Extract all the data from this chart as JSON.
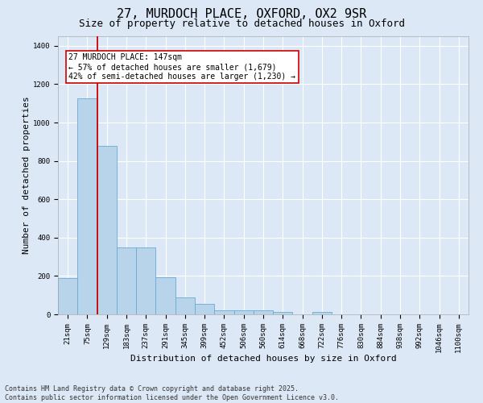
{
  "title_line1": "27, MURDOCH PLACE, OXFORD, OX2 9SR",
  "title_line2": "Size of property relative to detached houses in Oxford",
  "xlabel": "Distribution of detached houses by size in Oxford",
  "ylabel": "Number of detached properties",
  "categories": [
    "21sqm",
    "75sqm",
    "129sqm",
    "183sqm",
    "237sqm",
    "291sqm",
    "345sqm",
    "399sqm",
    "452sqm",
    "506sqm",
    "560sqm",
    "614sqm",
    "668sqm",
    "722sqm",
    "776sqm",
    "830sqm",
    "884sqm",
    "938sqm",
    "992sqm",
    "1046sqm",
    "1100sqm"
  ],
  "values": [
    190,
    1125,
    880,
    350,
    350,
    195,
    90,
    55,
    20,
    20,
    20,
    12,
    0,
    12,
    0,
    0,
    0,
    0,
    0,
    0,
    0
  ],
  "bar_color": "#b8d4ea",
  "bar_edge_color": "#6aaad4",
  "vline_index": 2,
  "vline_color": "#cc0000",
  "annotation_text": "27 MURDOCH PLACE: 147sqm\n← 57% of detached houses are smaller (1,679)\n42% of semi-detached houses are larger (1,230) →",
  "annotation_box_facecolor": "white",
  "annotation_box_edgecolor": "#cc0000",
  "ylim": [
    0,
    1450
  ],
  "yticks": [
    0,
    200,
    400,
    600,
    800,
    1000,
    1200,
    1400
  ],
  "background_color": "#dce8f5",
  "grid_color": "white",
  "footer_line1": "Contains HM Land Registry data © Crown copyright and database right 2025.",
  "footer_line2": "Contains public sector information licensed under the Open Government Licence v3.0.",
  "title_fontsize": 11,
  "subtitle_fontsize": 9,
  "axis_label_fontsize": 8,
  "tick_fontsize": 6.5,
  "annotation_fontsize": 7,
  "footer_fontsize": 6
}
